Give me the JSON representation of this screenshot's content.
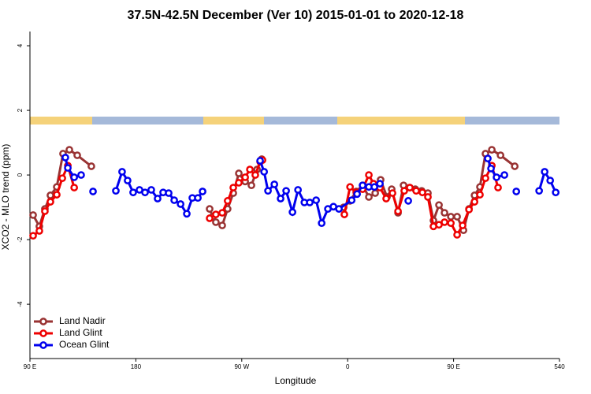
{
  "chart_data": {
    "type": "line",
    "title": "37.5N-42.5N December (Ver 10)   2015-01-01 to 2020-12-18",
    "x_label": "Longitude",
    "y_label": "XCO2 - MLO trend (ppm)",
    "xlim": [
      90,
      540
    ],
    "xticks": [
      {
        "value": 90,
        "label": "90 E"
      },
      180,
      {
        "value": 270,
        "label": "90 W"
      },
      {
        "value": 360,
        "label": "0"
      },
      {
        "value": 450,
        "label": "90 E"
      },
      540
    ],
    "ylim": [
      -5.68,
      4.44
    ],
    "yticks": [
      4,
      2,
      0,
      -2,
      -4
    ],
    "legend": "lower left",
    "series": [
      {
        "name": "Land Nadir",
        "color": "#993333",
        "x": [
          92.7,
          98,
          102.7,
          107.4,
          112.8,
          118.1,
          123.5,
          130.2,
          142.2,
          null,
          242.7,
          245.4,
          248,
          253.4,
          258,
          262.8,
          267.5,
          272.9,
          278.2,
          283,
          287,
          null,
          356.6,
          362,
          367.3,
          372.7,
          378,
          383.4,
          388,
          393.4,
          397.4,
          402.8,
          407.5,
          412.8,
          417.5,
          422.9,
          428.2,
          432.9,
          437.6,
          442.3,
          447.7,
          453,
          458.4,
          463.1,
          467.8,
          472.4,
          477.1,
          482.5,
          489.9,
          502
        ],
        "values": [
          -1.24,
          -1.59,
          -1.05,
          -0.63,
          -0.37,
          0.66,
          0.78,
          0.61,
          0.27,
          null,
          -1.05,
          -1.29,
          -1.46,
          -1.56,
          -1.05,
          -0.56,
          0.05,
          -0.2,
          -0.32,
          0.17,
          0.49,
          null,
          -1.0,
          -0.8,
          -0.51,
          -0.32,
          -0.68,
          -0.56,
          -0.15,
          -0.68,
          -0.44,
          -1.17,
          -0.32,
          -0.39,
          -0.44,
          -0.49,
          -0.56,
          -1.41,
          -0.93,
          -1.17,
          -1.29,
          -1.29,
          -1.71,
          -1.05,
          -0.63,
          -0.37,
          0.66,
          0.78,
          0.61,
          0.27
        ]
      },
      {
        "name": "Land Glint",
        "color": "#ee0000",
        "x": [
          92.7,
          98,
          102.7,
          107.4,
          112.8,
          117.5,
          122.2,
          127.6,
          null,
          242.7,
          248,
          253.4,
          258,
          262.8,
          267.5,
          272.9,
          276.9,
          281.5,
          285.6,
          287.6,
          null,
          357.2,
          362,
          367.3,
          372.7,
          378,
          382,
          387.4,
          392.7,
          398.1,
          402.8,
          408.1,
          412.8,
          418.2,
          423.5,
          428.2,
          432.9,
          437.6,
          442.3,
          447.7,
          453,
          457.7,
          463.1,
          467.8,
          472.4,
          477.1,
          482.5,
          487.8
        ],
        "values": [
          -1.88,
          -1.73,
          -1.12,
          -0.83,
          -0.61,
          -0.1,
          0.29,
          -0.39,
          null,
          -1.34,
          -1.22,
          -1.17,
          -0.8,
          -0.39,
          -0.24,
          -0.07,
          0.17,
          0,
          0.41,
          0.46,
          null,
          -1.22,
          -0.37,
          -0.54,
          -0.44,
          0,
          -0.27,
          -0.39,
          -0.73,
          -0.56,
          -1.12,
          -0.49,
          -0.39,
          -0.49,
          -0.54,
          -0.68,
          -1.59,
          -1.54,
          -1.46,
          -1.49,
          -1.85,
          -1.56,
          -1.07,
          -0.83,
          -0.61,
          -0.1,
          0.29,
          -0.39
        ]
      },
      {
        "name": "Ocean Glint",
        "color": "#0000ee",
        "x": [
          120.1,
          122.2,
          127.6,
          133.5,
          null,
          143.6,
          null,
          163,
          168.3,
          173,
          177.7,
          183.1,
          187.8,
          193.1,
          198.5,
          203.2,
          207.9,
          212.6,
          218,
          223.3,
          228,
          232.7,
          236.7,
          null,
          285.6,
          289,
          292.3,
          297.7,
          303,
          307.7,
          313.1,
          317.8,
          323.2,
          327.8,
          333.2,
          337.9,
          343.2,
          347.9,
          352.6,
          363.4,
          368,
          372.7,
          378,
          382.7,
          387.4,
          null,
          411.5,
          null,
          479.1,
          481.8,
          486.5,
          493.2,
          null,
          503.3,
          null,
          522.7,
          527.4,
          532.1,
          536.8
        ],
        "values": [
          0.54,
          0.22,
          -0.07,
          0,
          null,
          -0.51,
          null,
          -0.49,
          0.1,
          -0.17,
          -0.54,
          -0.46,
          -0.54,
          -0.46,
          -0.73,
          -0.54,
          -0.56,
          -0.78,
          -0.9,
          -1.2,
          -0.71,
          -0.71,
          -0.51,
          null,
          0.44,
          0.1,
          -0.49,
          -0.29,
          -0.73,
          -0.49,
          -1.15,
          -0.46,
          -0.85,
          -0.85,
          -0.78,
          -1.49,
          -1.05,
          -0.98,
          -1.05,
          -0.78,
          -0.59,
          -0.32,
          -0.37,
          -0.37,
          -0.27,
          null,
          -0.8,
          null,
          0.51,
          0.2,
          -0.07,
          0,
          null,
          -0.51,
          null,
          -0.49,
          0.1,
          -0.17,
          -0.54
        ]
      }
    ]
  }
}
